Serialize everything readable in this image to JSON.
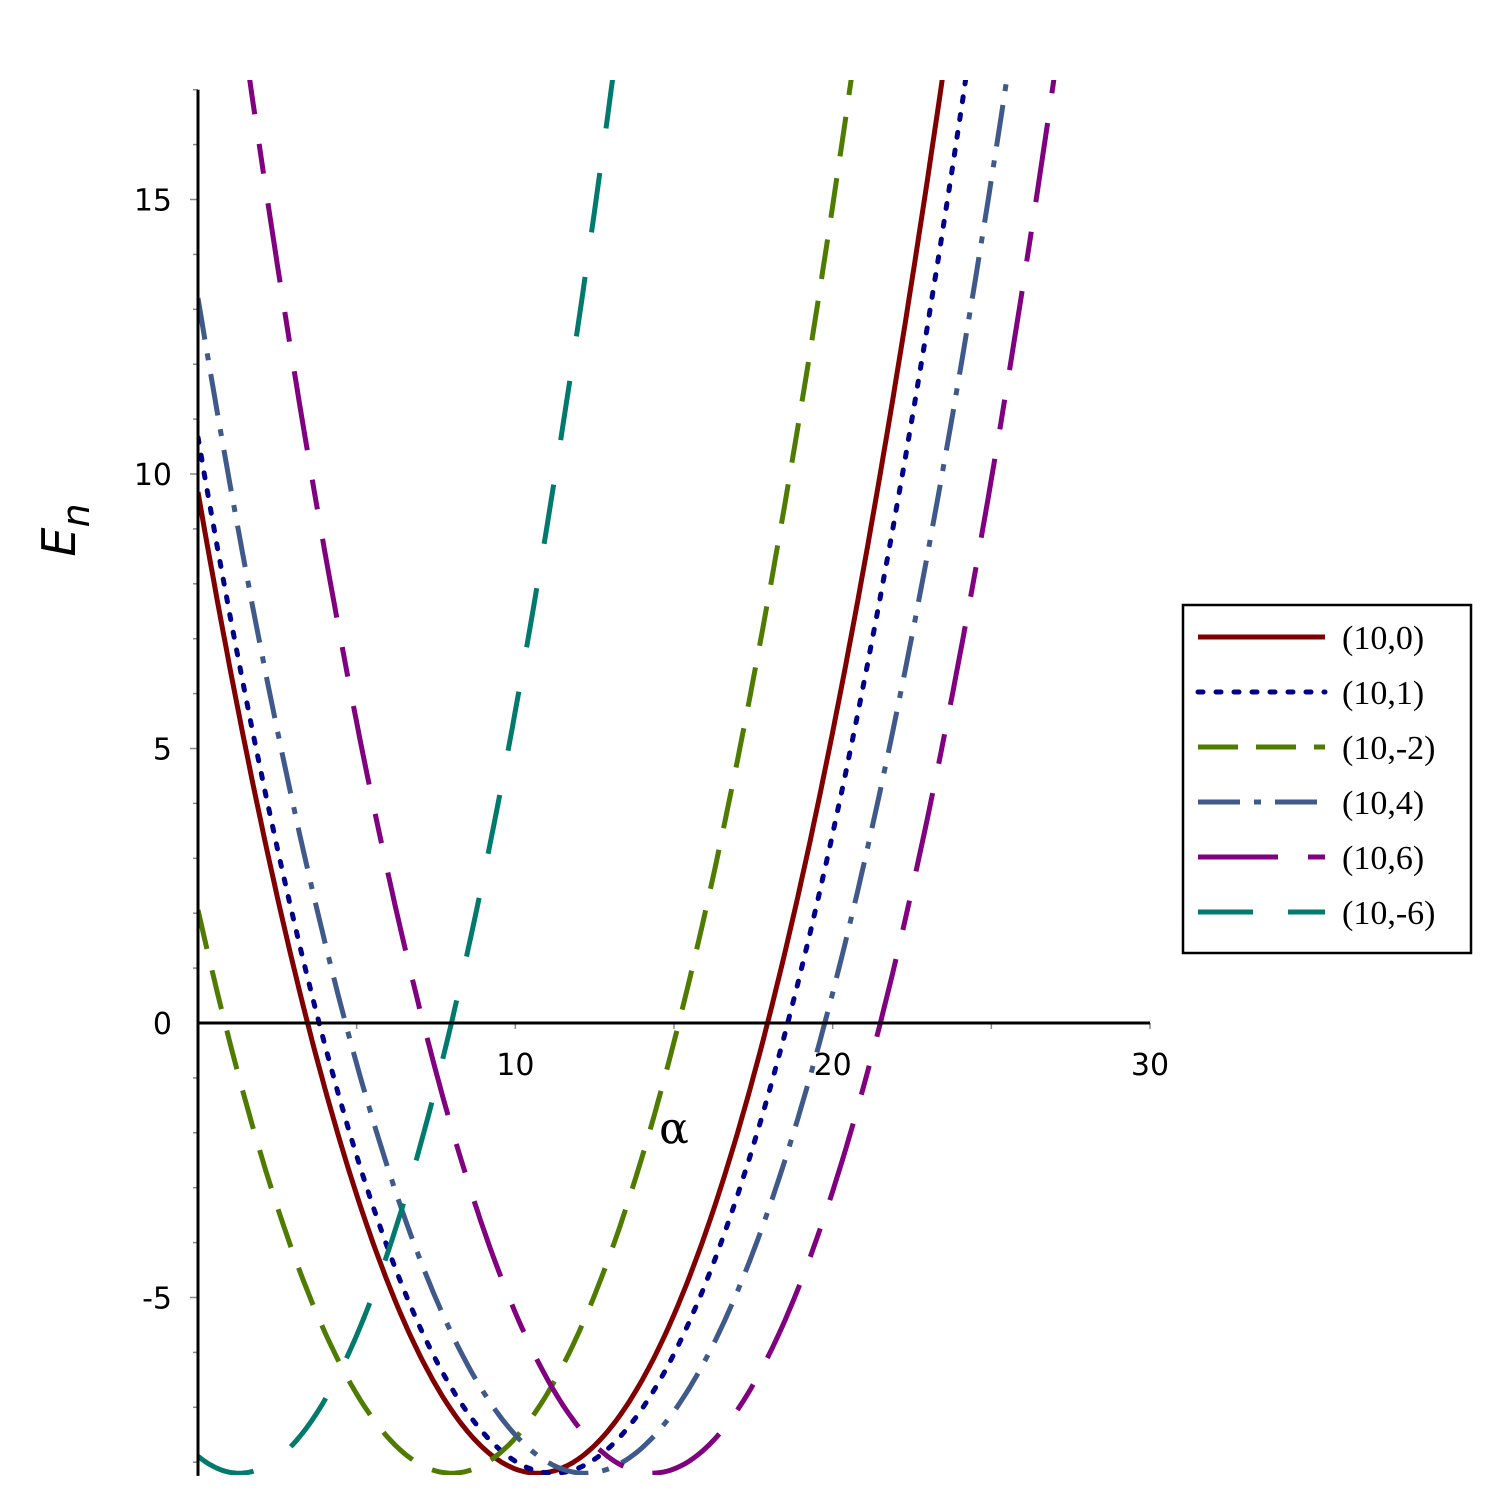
{
  "chart_data": {
    "type": "line",
    "xlabel": "α",
    "ylabel": {
      "base": "E",
      "sub": "n"
    },
    "xlim": [
      0,
      30
    ],
    "ylim": [
      -8.25,
      17
    ],
    "x_ticks": [
      10,
      20,
      30
    ],
    "y_ticks": [
      -5,
      0,
      5,
      10,
      15
    ],
    "x_minor_step": 5,
    "y_minor_step": 1,
    "grid": false,
    "legend_position": "right",
    "series": [
      {
        "name": "(10,0)",
        "color": "#800000",
        "style": "solid",
        "a": 0.00851,
        "vertex_x": 10.7,
        "vertex_y": -8.2
      },
      {
        "name": "(10,1)",
        "color": "#00008b",
        "style": "dotted",
        "a": 0.0082,
        "vertex_x": 11.2,
        "vertex_y": -8.2
      },
      {
        "name": "(10,-2)",
        "color": "#4f7c00",
        "style": "dashed",
        "a": 0.00874,
        "vertex_x": 8.0,
        "vertex_y": -8.2
      },
      {
        "name": "(10,4)",
        "color": "#3f5a8a",
        "style": "dashdot",
        "a": 0.00784,
        "vertex_x": 12.2,
        "vertex_y": -8.2
      },
      {
        "name": "(10,6)",
        "color": "#800080",
        "style": "longdash",
        "a": 0.00862,
        "vertex_x": 14.3,
        "vertex_y": -8.2
      },
      {
        "name": "(10,-6)",
        "color": "#007a6c",
        "style": "bigdash",
        "a": 0.01,
        "vertex_x": 1.3,
        "vertex_y": -8.2
      }
    ]
  }
}
